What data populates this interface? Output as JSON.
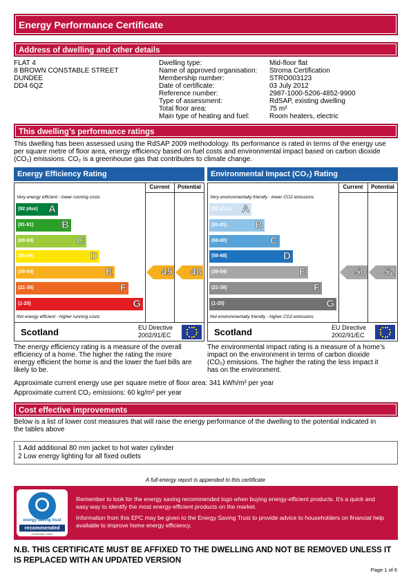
{
  "header": {
    "title": "Energy Performance Certificate"
  },
  "address_section": {
    "title": "Address of dwelling and other details",
    "address_lines": [
      "FLAT 4",
      "8 BROWN CONSTABLE STREET",
      "DUNDEE",
      "DD4 6QZ"
    ],
    "details": [
      [
        "Dwelling type:",
        "Mid-floor flat"
      ],
      [
        "Name of approved organisation:",
        "Stroma Certification"
      ],
      [
        "Membership number:",
        "STRO003123"
      ],
      [
        "Date of certificate:",
        "03 July 2012"
      ],
      [
        "Reference number:",
        "2987-1000-5206-4852-9900"
      ],
      [
        "Type of assessment:",
        "RdSAP, existing dwelling"
      ],
      [
        "Total floor area:",
        "75 m²"
      ],
      [
        "Main type of heating and fuel:",
        "Room heaters, electric"
      ]
    ]
  },
  "ratings_section": {
    "title": "This dwelling’s performance ratings",
    "intro": "This dwelling has been assessed using the RdSAP 2009 methodology. Its performance is rated in terms of the energy use per square metre of floor area, energy efficiency based on fuel costs and environmental impact based on carbon dioxide (CO₂) emissions. CO₂ is a greenhouse gas that contributes to climate change.",
    "charts": [
      {
        "title": "Energy Efficiency Rating",
        "col_current": "Current",
        "col_potential": "Potential",
        "top_note": "Very energy efficient - lower running costs",
        "bottom_note": "Not energy efficient - higher running costs",
        "bands": [
          {
            "range": "(92 plus)",
            "letter": "A",
            "color": "#007f3d"
          },
          {
            "range": "(81-91)",
            "letter": "B",
            "color": "#2c9f29"
          },
          {
            "range": "(69-80)",
            "letter": "C",
            "color": "#9dcb3c"
          },
          {
            "range": "(55-68)",
            "letter": "D",
            "color": "#ffe600"
          },
          {
            "range": "(39-54)",
            "letter": "E",
            "color": "#f7af1d"
          },
          {
            "range": "(21-38)",
            "letter": "F",
            "color": "#ed6823"
          },
          {
            "range": "(1-20)",
            "letter": "G",
            "color": "#e31d23"
          }
        ],
        "current": 45,
        "potential": 48,
        "country": "Scotland",
        "directive": [
          "EU Directive",
          "2002/91/EC"
        ],
        "description": "The energy efficiency rating is a measure of the overall efficiency of a home. The higher the rating the more energy efficient the home is and the lower the fuel bills are likely to be."
      },
      {
        "title": "Environmental Impact (CO₂) Rating",
        "col_current": "Current",
        "col_potential": "Potential",
        "top_note": "Very environmentally friendly - lower CO2 emissions",
        "bottom_note": "Not environmentally friendly - higher CO2 emissions",
        "bands": [
          {
            "range": "(92 plus)",
            "letter": "A",
            "color": "#cfe2f3"
          },
          {
            "range": "(81-91)",
            "letter": "B",
            "color": "#8fc3e8"
          },
          {
            "range": "(69-80)",
            "letter": "C",
            "color": "#56a2d9"
          },
          {
            "range": "(55-68)",
            "letter": "D",
            "color": "#1e73be"
          },
          {
            "range": "(39-54)",
            "letter": "E",
            "color": "#a6a6a6"
          },
          {
            "range": "(21-38)",
            "letter": "F",
            "color": "#8e8e8e"
          },
          {
            "range": "(1-20)",
            "letter": "G",
            "color": "#727272"
          }
        ],
        "current": 50,
        "potential": 52,
        "country": "Scotland",
        "directive": [
          "EU Directive",
          "2002/91/EC"
        ],
        "description": "The environmental impact rating is a measure of a home’s impact on the environment in terms of carbon dioxide (CO₂) emissions. The higher the rating the less impact it has on the environment."
      }
    ],
    "energy_use": "Approximate current energy use per square metre of floor area: 341 kWh/m² per year",
    "co2_emissions": "Approximate current CO₂ emissions: 60 kg/m² per year"
  },
  "improvements": {
    "title": "Cost effective improvements",
    "intro": "Below is a list of lower cost measures that will raise the energy performance of the dwelling to the potential indicated in the tables above",
    "items": [
      "1 Add additional 80 mm jacket to hot water cylinder",
      "2 Low energy lighting for all fixed outlets"
    ]
  },
  "full_report_note": "A full energy report is appended to this certificate",
  "est": {
    "logo_name": "energy saving trust",
    "logo_badge": "recommended",
    "logo_mark": "Certification Mark",
    "para1": "Remember to look for the energy saving recommended logo when buying energy-efficient products. It's a quick and easy way to identify the most energy-efficient products on the market.",
    "para2": "Information from this EPC may be given to the Energy Saving Trust to provide advice to householders on financial help available to improve home energy efficiency."
  },
  "notice": "N.B. THIS CERTIFICATE MUST BE AFFIXED TO THE DWELLING AND NOT BE REMOVED UNLESS IT IS REPLACED WITH AN UPDATED VERSION",
  "footer": {
    "page": "Page 1 of 6"
  }
}
